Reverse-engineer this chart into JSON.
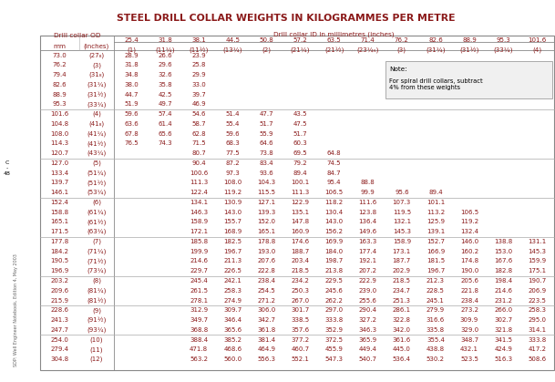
{
  "title": "STEEL DRILL COLLAR WEIGHTS IN KILOGRAMMES PER METRE",
  "title_color": "#8B1A1A",
  "background_color": "#FFFFFF",
  "header_color": "#8B1A1A",
  "data_color": "#8B1A1A",
  "border_color": "#888888",
  "sep_color": "#aaaaaa",
  "note_bg": "#f0f0f0",
  "note_border": "#aaaaaa",
  "side_label": "C\n-\n48",
  "footer_text": "SDP: Well Engineer Notebook, Edition 4, May 2003",
  "id_mms": [
    "25.4",
    "31.8",
    "38.1",
    "44.5",
    "50.8",
    "57.2",
    "63.5",
    "71.4",
    "76.2",
    "82.6",
    "88.9",
    "95.3",
    "101.6"
  ],
  "id_inch": [
    "(1)",
    "(11¼)",
    "(11½)",
    "(13¼)",
    "(2)",
    "(21¼)",
    "(21½)",
    "(23¼₆)",
    "(3)",
    "(31¼)",
    "(31½)",
    "(33¼)",
    "(4)"
  ],
  "rows": [
    [
      "73.0",
      "(27₈)",
      "28.9",
      "26.6",
      "23.9",
      "",
      "",
      "",
      "",
      "",
      "",
      "",
      "",
      "",
      ""
    ],
    [
      "76.2",
      "(3)",
      "31.8",
      "29.6",
      "25.8",
      "",
      "",
      "",
      "",
      "",
      "",
      "",
      "",
      "",
      ""
    ],
    [
      "79.4",
      "(31₈)",
      "34.8",
      "32.6",
      "29.9",
      "",
      "",
      "",
      "",
      "",
      "",
      "",
      "",
      "",
      ""
    ],
    [
      "82.6",
      "(31¼)",
      "38.0",
      "35.8",
      "33.0",
      "",
      "",
      "",
      "",
      "",
      "",
      "",
      "",
      "",
      ""
    ],
    [
      "88.9",
      "(31½)",
      "44.7",
      "42.5",
      "39.7",
      "",
      "",
      "",
      "",
      "",
      "",
      "",
      "",
      "",
      ""
    ],
    [
      "95.3",
      "(33¼)",
      "51.9",
      "49.7",
      "46.9",
      "",
      "",
      "",
      "",
      "",
      "",
      "",
      "",
      "",
      ""
    ],
    [
      "101.6",
      "(4)",
      "59.6",
      "57.4",
      "54.6",
      "51.4",
      "47.7",
      "43.5",
      "",
      "",
      "",
      "",
      "",
      "",
      ""
    ],
    [
      "104.8",
      "(41₈)",
      "63.6",
      "61.4",
      "58.7",
      "55.4",
      "51.7",
      "47.5",
      "",
      "",
      "",
      "",
      "",
      "",
      ""
    ],
    [
      "108.0",
      "(41¼)",
      "67.8",
      "65.6",
      "62.8",
      "59.6",
      "55.9",
      "51.7",
      "",
      "",
      "",
      "",
      "",
      "",
      ""
    ],
    [
      "114.3",
      "(41½)",
      "76.5",
      "74.3",
      "71.5",
      "68.3",
      "64.6",
      "60.3",
      "",
      "",
      "",
      "",
      "",
      "",
      ""
    ],
    [
      "120.7",
      "(43¼)",
      "",
      "",
      "80.7",
      "77.5",
      "73.8",
      "69.5",
      "64.8",
      "",
      "",
      "",
      "",
      "",
      ""
    ],
    [
      "127.0",
      "(5)",
      "",
      "",
      "90.4",
      "87.2",
      "83.4",
      "79.2",
      "74.5",
      "",
      "",
      "",
      "",
      "",
      ""
    ],
    [
      "133.4",
      "(51¼)",
      "",
      "",
      "100.6",
      "97.3",
      "93.6",
      "89.4",
      "84.7",
      "",
      "",
      "",
      "",
      "",
      ""
    ],
    [
      "139.7",
      "(51½)",
      "",
      "",
      "111.3",
      "108.0",
      "104.3",
      "100.1",
      "95.4",
      "88.8",
      "",
      "",
      "",
      "",
      ""
    ],
    [
      "146.1",
      "(53¼)",
      "",
      "",
      "122.4",
      "119.2",
      "115.5",
      "111.3",
      "106.5",
      "99.9",
      "95.6",
      "89.4",
      "",
      "",
      ""
    ],
    [
      "152.4",
      "(6)",
      "",
      "",
      "134.1",
      "130.9",
      "127.1",
      "122.9",
      "118.2",
      "111.6",
      "107.3",
      "101.1",
      "",
      "",
      ""
    ],
    [
      "158.8",
      "(61¼)",
      "",
      "",
      "146.3",
      "143.0",
      "139.3",
      "135.1",
      "130.4",
      "123.8",
      "119.5",
      "113.2",
      "106.5",
      "",
      ""
    ],
    [
      "165.1",
      "(61½)",
      "",
      "",
      "158.9",
      "155.7",
      "152.0",
      "147.8",
      "143.0",
      "136.4",
      "132.1",
      "125.9",
      "119.2",
      "",
      ""
    ],
    [
      "171.5",
      "(63¼)",
      "",
      "",
      "172.1",
      "168.9",
      "165.1",
      "160.9",
      "156.2",
      "149.6",
      "145.3",
      "139.1",
      "132.4",
      "",
      ""
    ],
    [
      "177.8",
      "(7)",
      "",
      "",
      "185.8",
      "182.5",
      "178.8",
      "174.6",
      "169.9",
      "163.3",
      "158.9",
      "152.7",
      "146.0",
      "138.8",
      "131.1"
    ],
    [
      "184.2",
      "(71¼)",
      "",
      "",
      "199.9",
      "196.7",
      "193.0",
      "188.7",
      "184.0",
      "177.4",
      "173.1",
      "166.9",
      "160.2",
      "153.0",
      "145.3"
    ],
    [
      "190.5",
      "(71½)",
      "",
      "",
      "214.6",
      "211.3",
      "207.6",
      "203.4",
      "198.7",
      "192.1",
      "187.7",
      "181.5",
      "174.8",
      "167.6",
      "159.9"
    ],
    [
      "196.9",
      "(73¼)",
      "",
      "",
      "229.7",
      "226.5",
      "222.8",
      "218.5",
      "213.8",
      "207.2",
      "202.9",
      "196.7",
      "190.0",
      "182.8",
      "175.1"
    ],
    [
      "203.2",
      "(8)",
      "",
      "",
      "245.4",
      "242.1",
      "238.4",
      "234.2",
      "229.5",
      "222.9",
      "218.5",
      "212.3",
      "205.6",
      "198.4",
      "190.7"
    ],
    [
      "209.6",
      "(81¼)",
      "",
      "",
      "261.5",
      "258.3",
      "254.5",
      "250.3",
      "245.6",
      "239.0",
      "234.7",
      "228.5",
      "221.8",
      "214.6",
      "206.9"
    ],
    [
      "215.9",
      "(81½)",
      "",
      "",
      "278.1",
      "274.9",
      "271.2",
      "267.0",
      "262.2",
      "255.6",
      "251.3",
      "245.1",
      "238.4",
      "231.2",
      "223.5"
    ],
    [
      "228.6",
      "(9)",
      "",
      "",
      "312.9",
      "309.7",
      "306.0",
      "301.7",
      "297.0",
      "290.4",
      "286.1",
      "279.9",
      "273.2",
      "266.0",
      "258.3"
    ],
    [
      "241.3",
      "(91½)",
      "",
      "",
      "349.7",
      "346.4",
      "342.7",
      "338.5",
      "333.8",
      "327.2",
      "322.8",
      "316.6",
      "309.9",
      "302.7",
      "295.0"
    ],
    [
      "247.7",
      "(93¼)",
      "",
      "",
      "368.8",
      "365.6",
      "361.8",
      "357.6",
      "352.9",
      "346.3",
      "342.0",
      "335.8",
      "329.0",
      "321.8",
      "314.1"
    ],
    [
      "254.0",
      "(10)",
      "",
      "",
      "388.4",
      "385.2",
      "381.4",
      "377.2",
      "372.5",
      "365.9",
      "361.6",
      "355.4",
      "348.7",
      "341.5",
      "333.8"
    ],
    [
      "279.4",
      "(11)",
      "",
      "",
      "471.8",
      "468.6",
      "464.9",
      "460.7",
      "455.9",
      "449.4",
      "445.0",
      "438.8",
      "432.1",
      "424.9",
      "417.2"
    ],
    [
      "304.8",
      "(12)",
      "",
      "",
      "563.2",
      "560.0",
      "556.3",
      "552.1",
      "547.3",
      "540.7",
      "536.4",
      "530.2",
      "523.5",
      "516.3",
      "508.6"
    ]
  ],
  "group_separators": [
    6,
    11,
    15,
    19,
    23,
    26,
    29
  ],
  "figsize": [
    6.09,
    4.19
  ],
  "dpi": 100
}
